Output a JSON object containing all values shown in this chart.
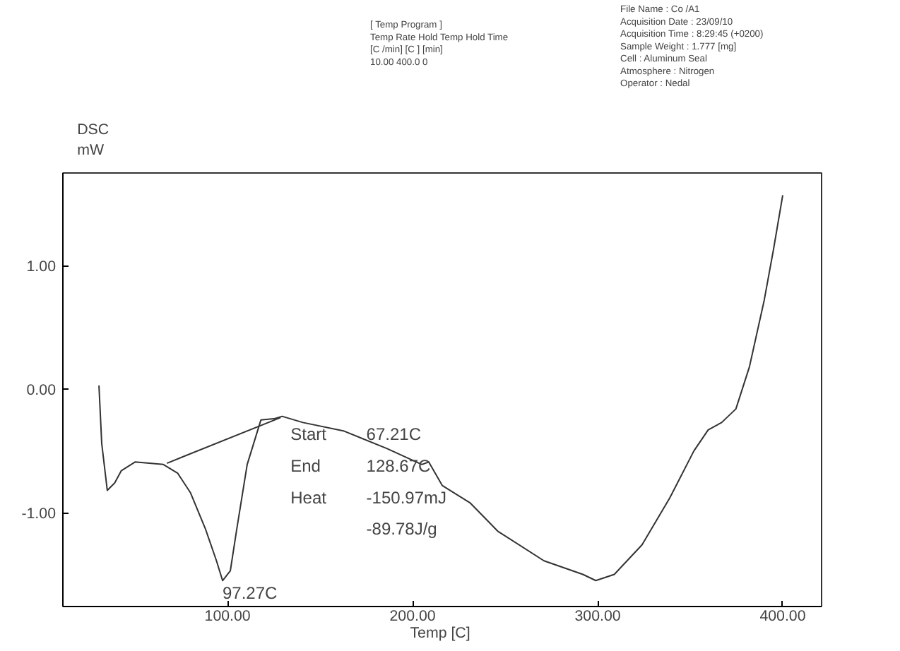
{
  "chart_data": {
    "type": "line",
    "xlabel": "Temp  [C]",
    "ylabel": "DSC\nmW",
    "series": [
      {
        "color": "#333333",
        "x": [
          30.5,
          32,
          35,
          39,
          42.6,
          50,
          65.3,
          73,
          80,
          88,
          94,
          97.3,
          101.5,
          105,
          110.6,
          118,
          125,
          129.5,
          140.7,
          163,
          186,
          205,
          208.7,
          216,
          231,
          246,
          271,
          292,
          299,
          309,
          324,
          339,
          352,
          359.7,
          367,
          374.7,
          382,
          390,
          395,
          400
        ],
        "values": [
          0.03,
          -0.44,
          -0.82,
          -0.76,
          -0.66,
          -0.59,
          -0.61,
          -0.68,
          -0.84,
          -1.13,
          -1.39,
          -1.55,
          -1.47,
          -1.13,
          -0.61,
          -0.25,
          -0.24,
          -0.22,
          -0.27,
          -0.34,
          -0.48,
          -0.61,
          -0.59,
          -0.78,
          -0.92,
          -1.15,
          -1.39,
          -1.5,
          -1.55,
          -1.5,
          -1.26,
          -0.88,
          -0.5,
          -0.33,
          -0.27,
          -0.16,
          0.18,
          0.72,
          1.13,
          1.57
        ]
      },
      {
        "color": "#333333",
        "x": [
          67.21,
          128.67
        ],
        "values": [
          -0.6,
          -0.23
        ]
      }
    ],
    "xlim": [
      11,
      421
    ],
    "ylim": [
      -1.76,
      1.75
    ],
    "xticks": [
      {
        "value": 100,
        "label": "100.00"
      },
      {
        "value": 200,
        "label": "200.00"
      },
      {
        "value": 300,
        "label": "300.00"
      },
      {
        "value": 400,
        "label": "400.00"
      }
    ],
    "yticks": [
      {
        "value": -1,
        "label": "-1.00"
      },
      {
        "value": 0,
        "label": "0.00"
      },
      {
        "value": 1,
        "label": "1.00"
      }
    ],
    "grid": false,
    "marker": "none",
    "line_style": "solid",
    "annotations": [
      {
        "text": "97.27C",
        "x": 97.27,
        "y": -1.55
      },
      "Start\nEnd\nHeat",
      "67.21C\n128.67C\n-150.97mJ\n-89.78J/g",
      "[ Temp Program ]\nTemp Rate Hold Temp Hold Time\n[C /min]          [C ]       [min]\n 10.00            400.0      0",
      "File Name :  Co /A1\nAcquisition Date :  23/09/10\nAcquisition Time :   8:29:45  (+0200)\nSample Weight :  1.777 [mg]\nCell : Aluminum Seal\nAtmosphere : Nitrogen\nOperator : Nedal"
    ]
  }
}
